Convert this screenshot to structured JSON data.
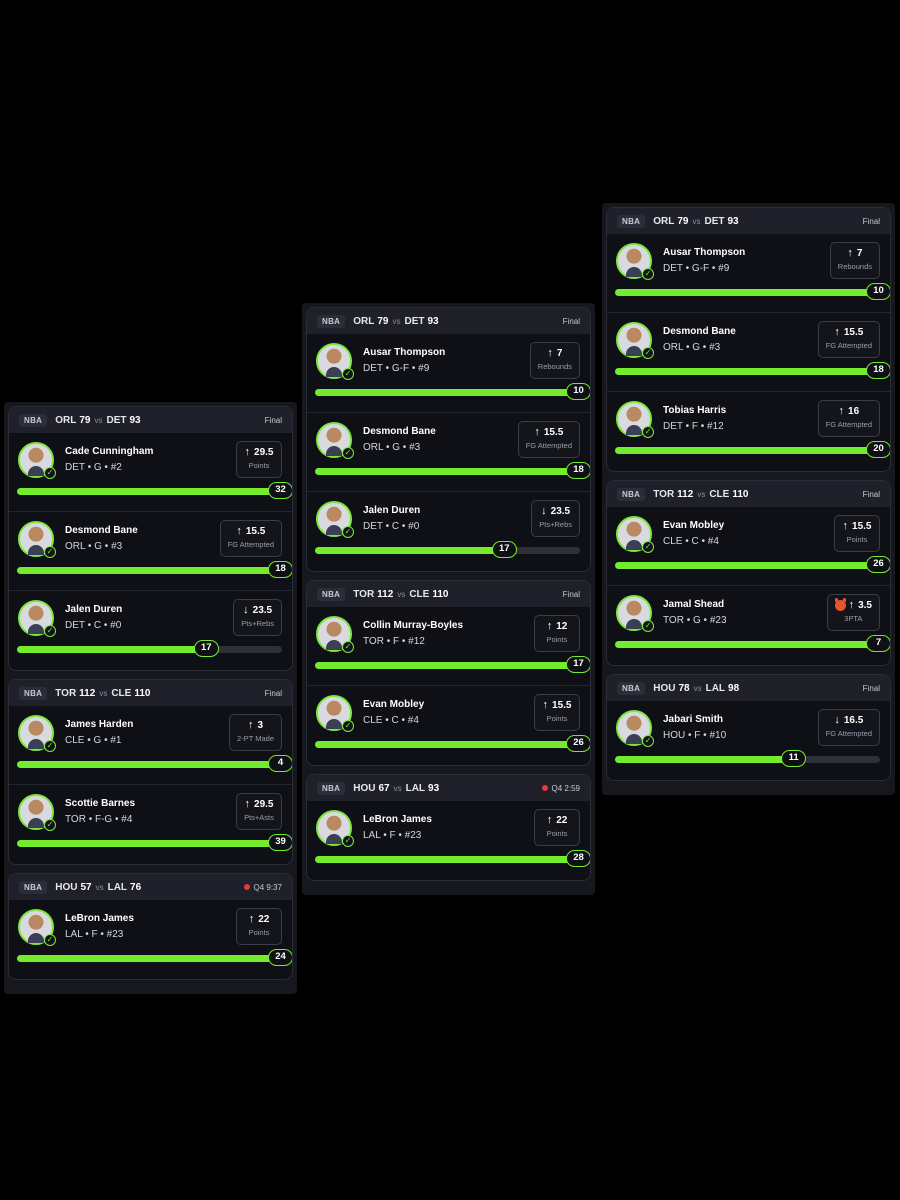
{
  "panels": [
    {
      "games": [
        {
          "league": "NBA",
          "away": "ORL",
          "away_score": "79",
          "vs": "vs",
          "home": "DET",
          "home_score": "93",
          "status": "Final",
          "live": false,
          "picks": [
            {
              "name": "Cade Cunningham",
              "info": "DET • G • #2",
              "direction": "up",
              "line": "29.5",
              "stat": "Points",
              "result": "32",
              "progress": 1.0
            },
            {
              "name": "Desmond Bane",
              "info": "ORL • G • #3",
              "direction": "up",
              "line": "15.5",
              "stat": "FG Attempted",
              "result": "18",
              "progress": 1.0
            },
            {
              "name": "Jalen Duren",
              "info": "DET • C • #0",
              "direction": "down",
              "line": "23.5",
              "stat": "Pts+Rebs",
              "result": "17",
              "progress": 0.72
            }
          ]
        },
        {
          "league": "NBA",
          "away": "TOR",
          "away_score": "112",
          "vs": "vs",
          "home": "CLE",
          "home_score": "110",
          "status": "Final",
          "live": false,
          "picks": [
            {
              "name": "James Harden",
              "info": "CLE • G • #1",
              "direction": "up",
              "line": "3",
              "stat": "2-PT Made",
              "result": "4",
              "progress": 1.0
            },
            {
              "name": "Scottie Barnes",
              "info": "TOR • F-G • #4",
              "direction": "up",
              "line": "29.5",
              "stat": "Pts+Asts",
              "result": "39",
              "progress": 1.0
            }
          ]
        },
        {
          "league": "NBA",
          "away": "HOU",
          "away_score": "57",
          "vs": "vs",
          "home": "LAL",
          "home_score": "76",
          "status": "Q4 9:37",
          "live": true,
          "picks": [
            {
              "name": "LeBron James",
              "info": "LAL • F • #23",
              "direction": "up",
              "line": "22",
              "stat": "Points",
              "result": "24",
              "progress": 1.0
            }
          ]
        }
      ]
    },
    {
      "games": [
        {
          "league": "NBA",
          "away": "ORL",
          "away_score": "79",
          "vs": "vs",
          "home": "DET",
          "home_score": "93",
          "status": "Final",
          "live": false,
          "picks": [
            {
              "name": "Ausar Thompson",
              "info": "DET • G-F • #9",
              "direction": "up",
              "line": "7",
              "stat": "Rebounds",
              "result": "10",
              "progress": 1.0
            },
            {
              "name": "Desmond Bane",
              "info": "ORL • G • #3",
              "direction": "up",
              "line": "15.5",
              "stat": "FG Attempted",
              "result": "18",
              "progress": 1.0
            },
            {
              "name": "Jalen Duren",
              "info": "DET • C • #0",
              "direction": "down",
              "line": "23.5",
              "stat": "Pts+Rebs",
              "result": "17",
              "progress": 0.72
            }
          ]
        },
        {
          "league": "NBA",
          "away": "TOR",
          "away_score": "112",
          "vs": "vs",
          "home": "CLE",
          "home_score": "110",
          "status": "Final",
          "live": false,
          "picks": [
            {
              "name": "Collin Murray-Boyles",
              "info": "TOR • F • #12",
              "direction": "up",
              "line": "12",
              "stat": "Points",
              "result": "17",
              "progress": 1.0
            },
            {
              "name": "Evan Mobley",
              "info": "CLE • C • #4",
              "direction": "up",
              "line": "15.5",
              "stat": "Points",
              "result": "26",
              "progress": 1.0
            }
          ]
        },
        {
          "league": "NBA",
          "away": "HOU",
          "away_score": "67",
          "vs": "vs",
          "home": "LAL",
          "home_score": "93",
          "status": "Q4 2:59",
          "live": true,
          "picks": [
            {
              "name": "LeBron James",
              "info": "LAL • F • #23",
              "direction": "up",
              "line": "22",
              "stat": "Points",
              "result": "28",
              "progress": 1.0
            }
          ]
        }
      ]
    },
    {
      "games": [
        {
          "league": "NBA",
          "away": "ORL",
          "away_score": "79",
          "vs": "vs",
          "home": "DET",
          "home_score": "93",
          "status": "Final",
          "live": false,
          "picks": [
            {
              "name": "Ausar Thompson",
              "info": "DET • G-F • #9",
              "direction": "up",
              "line": "7",
              "stat": "Rebounds",
              "result": "10",
              "progress": 1.0
            },
            {
              "name": "Desmond Bane",
              "info": "ORL • G • #3",
              "direction": "up",
              "line": "15.5",
              "stat": "FG Attempted",
              "result": "18",
              "progress": 1.0
            },
            {
              "name": "Tobias Harris",
              "info": "DET • F • #12",
              "direction": "up",
              "line": "16",
              "stat": "FG Attempted",
              "result": "20",
              "progress": 1.0
            }
          ]
        },
        {
          "league": "NBA",
          "away": "TOR",
          "away_score": "112",
          "vs": "vs",
          "home": "CLE",
          "home_score": "110",
          "status": "Final",
          "live": false,
          "picks": [
            {
              "name": "Evan Mobley",
              "info": "CLE • C • #4",
              "direction": "up",
              "line": "15.5",
              "stat": "Points",
              "result": "26",
              "progress": 1.0
            },
            {
              "name": "Jamal Shead",
              "info": "TOR • G • #23",
              "direction": "up",
              "line": "3.5",
              "stat": "3PTA",
              "result": "7",
              "progress": 1.0,
              "demon": true
            }
          ]
        },
        {
          "league": "NBA",
          "away": "HOU",
          "away_score": "78",
          "vs": "vs",
          "home": "LAL",
          "home_score": "98",
          "status": "Final",
          "live": false,
          "picks": [
            {
              "name": "Jabari Smith",
              "info": "HOU • F • #10",
              "direction": "down",
              "line": "16.5",
              "stat": "FG Attempted",
              "result": "11",
              "progress": 0.68
            }
          ]
        }
      ]
    }
  ],
  "colors": {
    "accent": "#72ec2c",
    "live": "#e53935",
    "card": "#0f1015",
    "header": "#1f2029"
  },
  "icons": {
    "up": "up-arrow-icon",
    "down": "down-arrow-icon",
    "check": "check-icon",
    "demon": "demon-icon"
  }
}
